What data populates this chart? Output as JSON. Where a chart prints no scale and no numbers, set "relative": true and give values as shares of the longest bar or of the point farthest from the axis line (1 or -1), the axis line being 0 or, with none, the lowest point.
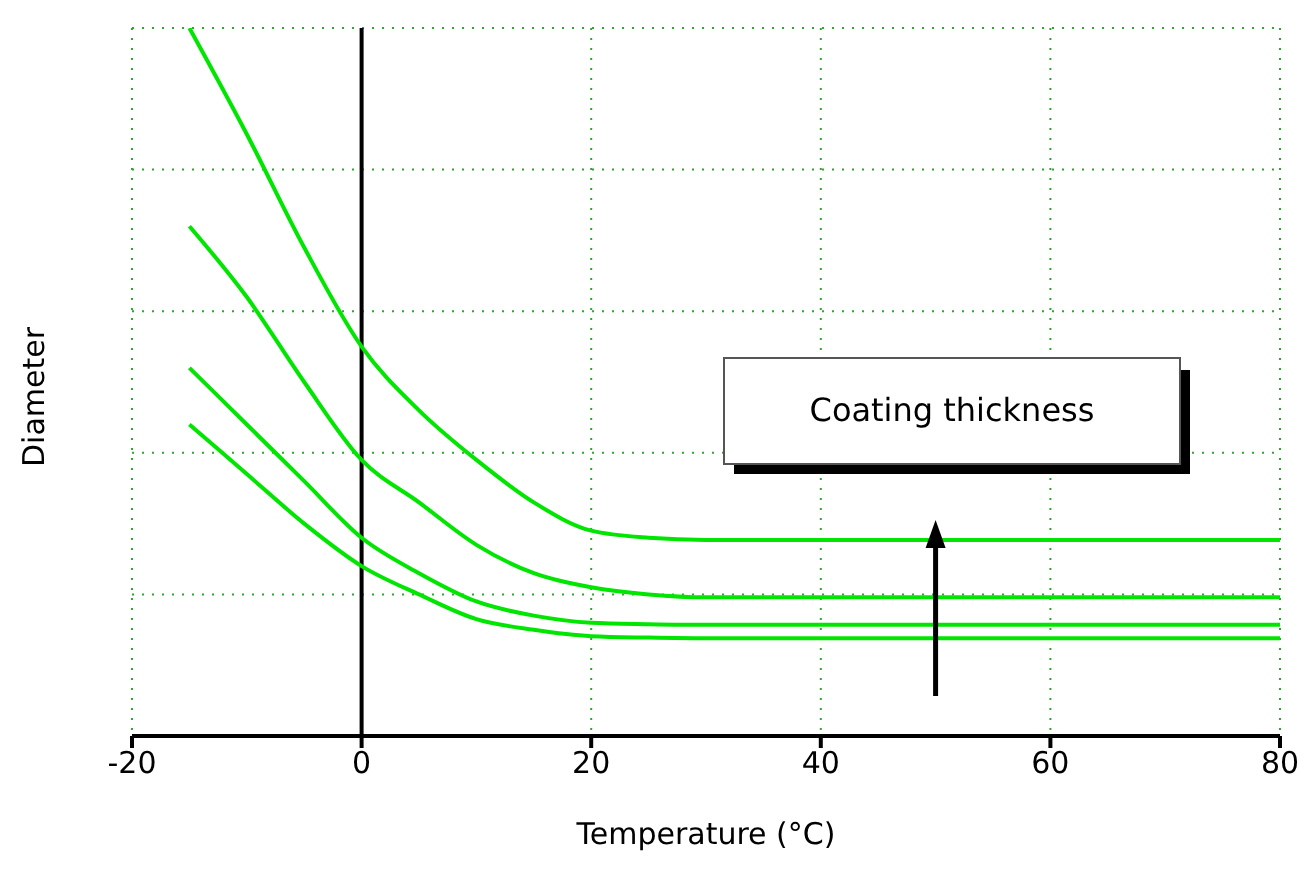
{
  "chart_data": {
    "type": "line",
    "relative": true,
    "xlabel": "Temperature (°C)",
    "ylabel": "Diameter",
    "xlim": [
      -20,
      80
    ],
    "xticks": [
      -20,
      0,
      20,
      40,
      60,
      80
    ],
    "grid": true,
    "marker": "none",
    "line_style": "solid",
    "ref_lines": [
      {
        "axis": "x",
        "value": 0,
        "color": "#000000"
      }
    ],
    "annotations": [
      "Coating thickness"
    ],
    "x": [
      -15,
      -10,
      -5,
      0,
      5,
      10,
      15,
      20,
      25,
      30,
      80
    ],
    "series": [
      {
        "color": "#00e600",
        "values": [
          1.0,
          0.85,
          0.69,
          0.55,
          0.46,
          0.39,
          0.33,
          0.29,
          0.28,
          0.277,
          0.277
        ]
      },
      {
        "color": "#00e600",
        "values": [
          0.72,
          0.62,
          0.5,
          0.39,
          0.33,
          0.27,
          0.23,
          0.21,
          0.2,
          0.196,
          0.196
        ]
      },
      {
        "color": "#00e600",
        "values": [
          0.52,
          0.44,
          0.36,
          0.28,
          0.23,
          0.19,
          0.17,
          0.16,
          0.158,
          0.157,
          0.157
        ]
      },
      {
        "color": "#00e600",
        "values": [
          0.44,
          0.37,
          0.3,
          0.24,
          0.2,
          0.165,
          0.15,
          0.141,
          0.139,
          0.138,
          0.138
        ]
      }
    ]
  }
}
